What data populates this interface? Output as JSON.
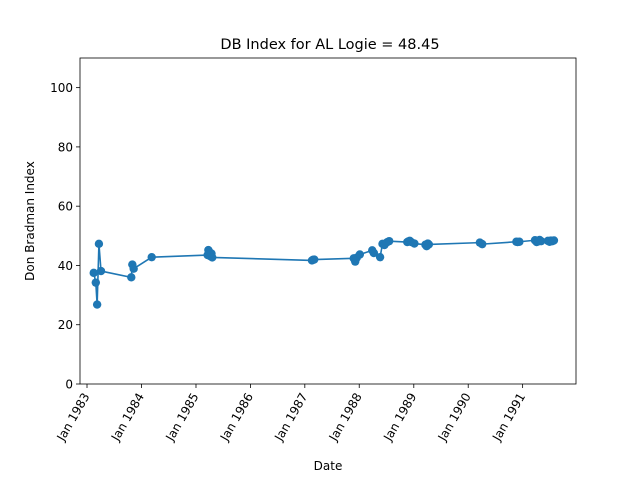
{
  "chart_data": {
    "type": "line",
    "title": "DB Index for AL Logie = 48.45",
    "xlabel": "Date",
    "ylabel": "Don Bradman Index",
    "xlim": [
      "1982-11-15",
      "1991-12-25"
    ],
    "ylim": [
      0,
      110
    ],
    "yticks": [
      0,
      20,
      40,
      60,
      80,
      100
    ],
    "xticks": [
      {
        "date": "1983-01-01",
        "label": "Jan 1983"
      },
      {
        "date": "1984-01-01",
        "label": "Jan 1984"
      },
      {
        "date": "1985-01-01",
        "label": "Jan 1985"
      },
      {
        "date": "1986-01-01",
        "label": "Jan 1986"
      },
      {
        "date": "1987-01-01",
        "label": "Jan 1987"
      },
      {
        "date": "1988-01-01",
        "label": "Jan 1988"
      },
      {
        "date": "1989-01-01",
        "label": "Jan 1989"
      },
      {
        "date": "1990-01-01",
        "label": "Jan 1990"
      },
      {
        "date": "1991-01-01",
        "label": "Jan 1991"
      }
    ],
    "grid": false,
    "series_color": "#1f77b4",
    "series": [
      {
        "x": [
          "1983-02-15",
          "1983-03-01",
          "1983-03-10",
          "1983-03-22",
          "1983-04-05",
          "1983-10-25",
          "1983-11-01",
          "1983-11-10",
          "1984-03-10",
          "1985-03-20",
          "1985-03-25",
          "1985-04-01",
          "1985-04-08",
          "1985-04-15",
          "1985-04-20",
          "1987-02-18",
          "1987-02-25",
          "1987-03-05",
          "1987-11-25",
          "1987-12-05",
          "1987-12-15",
          "1988-01-05",
          "1988-03-28",
          "1988-04-08",
          "1988-05-20",
          "1988-06-05",
          "1988-06-18",
          "1988-07-05",
          "1988-07-20",
          "1988-11-18",
          "1988-11-25",
          "1988-12-05",
          "1988-12-15",
          "1989-01-05",
          "1989-03-20",
          "1989-03-28",
          "1989-04-05",
          "1989-04-12",
          "1990-03-20",
          "1990-04-05",
          "1990-11-20",
          "1990-11-28",
          "1990-12-10",
          "1991-03-25",
          "1991-04-05",
          "1991-04-15",
          "1991-04-25",
          "1991-05-05",
          "1991-06-20",
          "1991-07-01",
          "1991-07-10",
          "1991-07-20",
          "1991-07-30"
        ],
        "y": [
          37.5,
          34.2,
          26.8,
          47.3,
          38.1,
          36.0,
          40.3,
          38.9,
          42.8,
          43.5,
          45.2,
          44.6,
          43.1,
          44.0,
          42.7,
          41.7,
          41.9,
          42.0,
          42.4,
          41.3,
          42.6,
          43.7,
          45.1,
          44.2,
          42.8,
          47.3,
          46.9,
          47.8,
          48.2,
          47.9,
          48.1,
          48.3,
          47.9,
          47.4,
          47.0,
          46.5,
          47.4,
          47.1,
          47.7,
          47.2,
          48.0,
          47.9,
          48.0,
          48.5,
          47.9,
          48.1,
          48.6,
          48.2,
          48.3,
          48.0,
          48.4,
          48.2,
          48.45
        ]
      }
    ]
  }
}
